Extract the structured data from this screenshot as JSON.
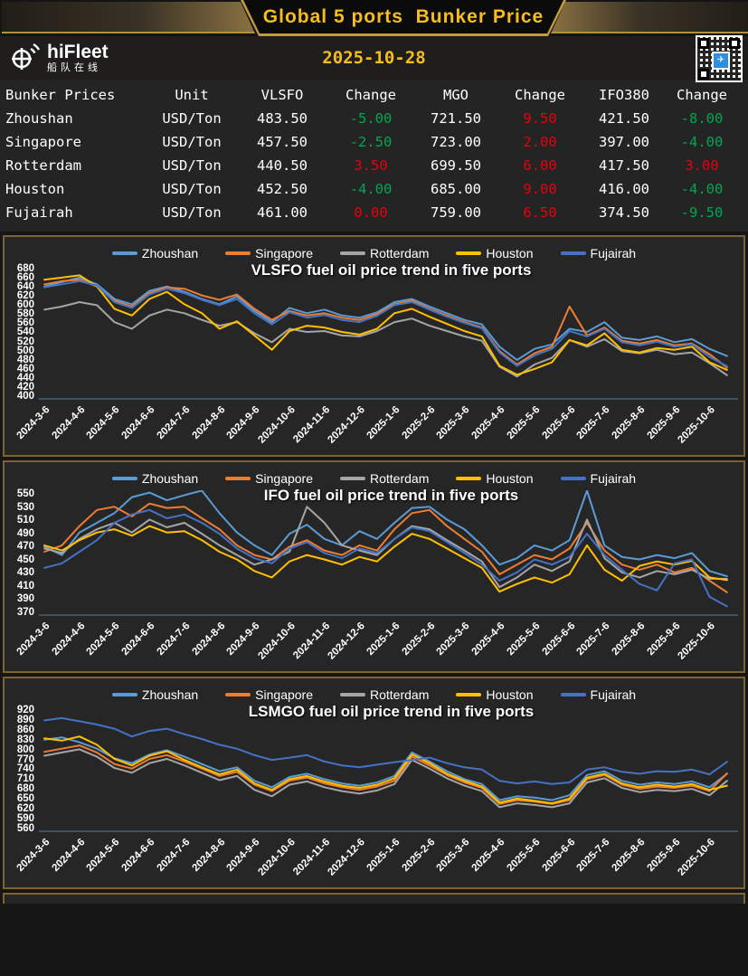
{
  "header": {
    "title": "Global 5 ports  Bunker Price",
    "date": "2025-10-28",
    "brand_name": "hiFleet",
    "brand_subtitle": "船队在线",
    "qr_center_glyph": "✈"
  },
  "colors": {
    "up_red": "#e8000d",
    "down_green": "#00a651",
    "gold": "#f7bd1c",
    "box_border": "#7d6233",
    "axis_line": "#5a7a9a"
  },
  "table": {
    "headers": [
      "Bunker Prices",
      "Unit",
      "VLSFO",
      "Change",
      "MGO",
      "Change",
      "IFO380",
      "Change"
    ],
    "rows": [
      {
        "cells": [
          {
            "t": "Zhoushan"
          },
          {
            "t": "USD/Ton"
          },
          {
            "t": "483.50"
          },
          {
            "t": "-5.00",
            "c": "down"
          },
          {
            "t": "721.50"
          },
          {
            "t": "9.50",
            "c": "up"
          },
          {
            "t": "421.50"
          },
          {
            "t": "-8.00",
            "c": "down"
          }
        ]
      },
      {
        "cells": [
          {
            "t": "Singapore"
          },
          {
            "t": "USD/Ton"
          },
          {
            "t": "457.50"
          },
          {
            "t": "-2.50",
            "c": "down"
          },
          {
            "t": "723.00"
          },
          {
            "t": "2.00",
            "c": "up"
          },
          {
            "t": "397.00"
          },
          {
            "t": "-4.00",
            "c": "down"
          }
        ]
      },
      {
        "cells": [
          {
            "t": "Rotterdam"
          },
          {
            "t": "USD/Ton"
          },
          {
            "t": "440.50"
          },
          {
            "t": "3.50",
            "c": "up"
          },
          {
            "t": "699.50"
          },
          {
            "t": "6.00",
            "c": "up"
          },
          {
            "t": "417.50"
          },
          {
            "t": "3.00",
            "c": "up"
          }
        ]
      },
      {
        "cells": [
          {
            "t": "Houston"
          },
          {
            "t": "USD/Ton"
          },
          {
            "t": "452.50"
          },
          {
            "t": "-4.00",
            "c": "down"
          },
          {
            "t": "685.00"
          },
          {
            "t": "9.00",
            "c": "up"
          },
          {
            "t": "416.00"
          },
          {
            "t": "-4.00",
            "c": "down"
          }
        ]
      },
      {
        "cells": [
          {
            "t": "Fujairah"
          },
          {
            "t": "USD/Ton"
          },
          {
            "t": "461.00"
          },
          {
            "t": "0.00",
            "c": "up"
          },
          {
            "t": "759.00"
          },
          {
            "t": "6.50",
            "c": "up"
          },
          {
            "t": "374.50"
          },
          {
            "t": "-9.50",
            "c": "down"
          }
        ]
      }
    ]
  },
  "chart_data": [
    {
      "type": "line",
      "title": "VLSFO fuel oil price trend in five ports",
      "ylim": [
        400,
        680
      ],
      "y_ticks": [
        "680",
        "660",
        "640",
        "620",
        "600",
        "580",
        "560",
        "540",
        "520",
        "500",
        "480",
        "460",
        "440",
        "420",
        "400"
      ],
      "categories": [
        "2024-3-6",
        "2024-4-6",
        "2024-5-6",
        "2024-6-6",
        "2024-7-6",
        "2024-8-6",
        "2024-9-6",
        "2024-10-6",
        "2024-11-6",
        "2024-12-6",
        "2025-1-6",
        "2025-2-6",
        "2025-3-6",
        "2025-4-6",
        "2025-5-6",
        "2025-6-6",
        "2025-7-6",
        "2025-8-6",
        "2025-9-6",
        "2025-10-6"
      ],
      "legend_position": "top",
      "grid": false,
      "series": [
        {
          "name": "Zhoushan",
          "color": "#5B9BD5",
          "values": [
            640,
            650,
            660,
            645,
            612,
            600,
            630,
            640,
            628,
            612,
            600,
            618,
            585,
            560,
            592,
            580,
            588,
            575,
            570,
            582,
            605,
            612,
            595,
            580,
            565,
            555,
            505,
            475,
            500,
            510,
            545,
            538,
            560,
            525,
            520,
            528,
            515,
            522,
            500,
            484
          ]
        },
        {
          "name": "Singapore",
          "color": "#ED7D31",
          "values": [
            645,
            652,
            655,
            640,
            608,
            595,
            625,
            638,
            635,
            620,
            610,
            622,
            590,
            565,
            585,
            575,
            580,
            570,
            565,
            578,
            600,
            608,
            590,
            575,
            560,
            548,
            495,
            465,
            490,
            505,
            595,
            530,
            548,
            518,
            512,
            520,
            508,
            512,
            488,
            458
          ]
        },
        {
          "name": "Rotterdam",
          "color": "#A5A5A5",
          "values": [
            588,
            595,
            605,
            598,
            560,
            545,
            575,
            588,
            580,
            565,
            552,
            560,
            535,
            515,
            545,
            538,
            540,
            530,
            528,
            540,
            560,
            568,
            552,
            540,
            528,
            518,
            460,
            438,
            465,
            480,
            520,
            505,
            522,
            495,
            490,
            498,
            488,
            492,
            468,
            441
          ]
        },
        {
          "name": "Houston",
          "color": "#FFC000",
          "values": [
            655,
            660,
            665,
            640,
            590,
            575,
            612,
            628,
            600,
            580,
            545,
            562,
            530,
            498,
            540,
            552,
            548,
            538,
            532,
            545,
            580,
            590,
            572,
            556,
            540,
            528,
            462,
            442,
            455,
            470,
            520,
            508,
            535,
            498,
            492,
            502,
            498,
            505,
            470,
            453
          ]
        },
        {
          "name": "Fujairah",
          "color": "#4472C4",
          "values": [
            638,
            645,
            652,
            642,
            605,
            592,
            622,
            635,
            625,
            610,
            598,
            612,
            580,
            555,
            582,
            570,
            576,
            565,
            560,
            574,
            598,
            605,
            588,
            572,
            558,
            546,
            492,
            462,
            485,
            500,
            540,
            528,
            545,
            515,
            508,
            516,
            505,
            510,
            482,
            461
          ]
        }
      ]
    },
    {
      "type": "line",
      "title": "IFO fuel oil price trend in five ports",
      "ylim": [
        370,
        550
      ],
      "y_ticks": [
        "550",
        "530",
        "510",
        "490",
        "470",
        "450",
        "430",
        "410",
        "390",
        "370"
      ],
      "categories": [
        "2024-3-6",
        "2024-4-6",
        "2024-5-6",
        "2024-6-6",
        "2024-7-6",
        "2024-8-6",
        "2024-9-6",
        "2024-10-6",
        "2024-11-6",
        "2024-12-6",
        "2025-1-6",
        "2025-2-6",
        "2025-3-6",
        "2025-4-6",
        "2025-5-6",
        "2025-6-6",
        "2025-7-6",
        "2025-8-6",
        "2025-9-6",
        "2025-10-6"
      ],
      "legend_position": "top",
      "grid": false,
      "series": [
        {
          "name": "Zhoushan",
          "color": "#5B9BD5",
          "values": [
            468,
            455,
            490,
            505,
            520,
            545,
            552,
            540,
            548,
            555,
            520,
            490,
            470,
            455,
            488,
            502,
            480,
            470,
            492,
            480,
            505,
            528,
            530,
            510,
            495,
            470,
            440,
            450,
            470,
            462,
            478,
            555,
            470,
            452,
            448,
            455,
            450,
            458,
            430,
            422
          ]
        },
        {
          "name": "Singapore",
          "color": "#ED7D31",
          "values": [
            460,
            470,
            500,
            525,
            530,
            515,
            535,
            528,
            530,
            512,
            495,
            470,
            455,
            448,
            468,
            478,
            462,
            455,
            470,
            462,
            495,
            520,
            525,
            500,
            480,
            460,
            425,
            440,
            455,
            448,
            465,
            505,
            462,
            440,
            432,
            440,
            428,
            435,
            415,
            397
          ]
        },
        {
          "name": "Rotterdam",
          "color": "#A5A5A5",
          "values": [
            465,
            458,
            480,
            495,
            505,
            490,
            510,
            498,
            505,
            488,
            470,
            455,
            440,
            448,
            460,
            530,
            505,
            470,
            462,
            455,
            480,
            500,
            495,
            478,
            462,
            445,
            405,
            420,
            440,
            430,
            445,
            510,
            450,
            428,
            420,
            430,
            425,
            432,
            418,
            418
          ]
        },
        {
          "name": "Houston",
          "color": "#FFC000",
          "values": [
            470,
            462,
            478,
            490,
            495,
            485,
            500,
            490,
            492,
            478,
            460,
            448,
            430,
            420,
            445,
            455,
            448,
            440,
            452,
            445,
            468,
            488,
            480,
            465,
            450,
            435,
            398,
            410,
            420,
            412,
            425,
            470,
            432,
            415,
            438,
            445,
            440,
            446,
            420,
            416
          ]
        },
        {
          "name": "Fujairah",
          "color": "#4472C4",
          "values": [
            435,
            442,
            460,
            478,
            505,
            518,
            525,
            512,
            518,
            505,
            488,
            465,
            450,
            442,
            465,
            475,
            458,
            450,
            465,
            458,
            480,
            498,
            492,
            475,
            458,
            440,
            415,
            428,
            448,
            440,
            452,
            488,
            455,
            432,
            410,
            400,
            442,
            448,
            390,
            375
          ]
        }
      ]
    },
    {
      "type": "line",
      "title": "LSMGO fuel oil price trend in five ports",
      "ylim": [
        560,
        920
      ],
      "y_ticks": [
        "920",
        "890",
        "860",
        "830",
        "800",
        "770",
        "740",
        "710",
        "680",
        "650",
        "620",
        "590",
        "560"
      ],
      "categories": [
        "2024-3-6",
        "2024-4-6",
        "2024-5-6",
        "2024-6-6",
        "2024-7-6",
        "2024-8-6",
        "2024-9-6",
        "2024-10-6",
        "2024-11-6",
        "2024-12-6",
        "2025-1-6",
        "2025-2-6",
        "2025-3-6",
        "2025-4-6",
        "2025-5-6",
        "2025-6-6",
        "2025-7-6",
        "2025-8-6",
        "2025-9-6",
        "2025-10-6"
      ],
      "legend_position": "top",
      "grid": false,
      "series": [
        {
          "name": "Zhoushan",
          "color": "#5B9BD5",
          "values": [
            828,
            835,
            820,
            800,
            770,
            755,
            782,
            795,
            775,
            752,
            730,
            742,
            700,
            680,
            712,
            722,
            705,
            692,
            685,
            695,
            715,
            788,
            760,
            730,
            705,
            690,
            640,
            652,
            648,
            640,
            655,
            718,
            730,
            700,
            688,
            695,
            690,
            698,
            680,
            722
          ]
        },
        {
          "name": "Singapore",
          "color": "#ED7D31",
          "values": [
            790,
            800,
            810,
            788,
            752,
            738,
            768,
            780,
            760,
            738,
            715,
            728,
            688,
            668,
            700,
            710,
            692,
            680,
            672,
            682,
            700,
            775,
            748,
            718,
            695,
            678,
            628,
            640,
            635,
            628,
            640,
            705,
            718,
            688,
            675,
            682,
            678,
            685,
            668,
            723
          ]
        },
        {
          "name": "Rotterdam",
          "color": "#A5A5A5",
          "values": [
            778,
            788,
            798,
            775,
            740,
            725,
            755,
            768,
            748,
            725,
            702,
            715,
            672,
            652,
            688,
            698,
            680,
            668,
            660,
            670,
            690,
            765,
            738,
            708,
            685,
            668,
            618,
            630,
            625,
            618,
            630,
            695,
            708,
            678,
            665,
            672,
            668,
            675,
            655,
            700
          ]
        },
        {
          "name": "Houston",
          "color": "#FFC000",
          "values": [
            832,
            825,
            838,
            812,
            768,
            748,
            778,
            792,
            765,
            742,
            720,
            735,
            692,
            672,
            705,
            715,
            698,
            685,
            678,
            688,
            708,
            782,
            755,
            722,
            700,
            682,
            632,
            645,
            638,
            630,
            645,
            710,
            722,
            692,
            680,
            688,
            682,
            690,
            672,
            685
          ]
        },
        {
          "name": "Fujairah",
          "color": "#4472C4",
          "values": [
            888,
            895,
            885,
            875,
            862,
            838,
            855,
            862,
            845,
            830,
            812,
            800,
            780,
            765,
            772,
            780,
            760,
            748,
            742,
            750,
            758,
            765,
            772,
            755,
            742,
            735,
            700,
            692,
            698,
            690,
            695,
            735,
            742,
            728,
            722,
            730,
            728,
            735,
            720,
            759
          ]
        }
      ]
    }
  ]
}
